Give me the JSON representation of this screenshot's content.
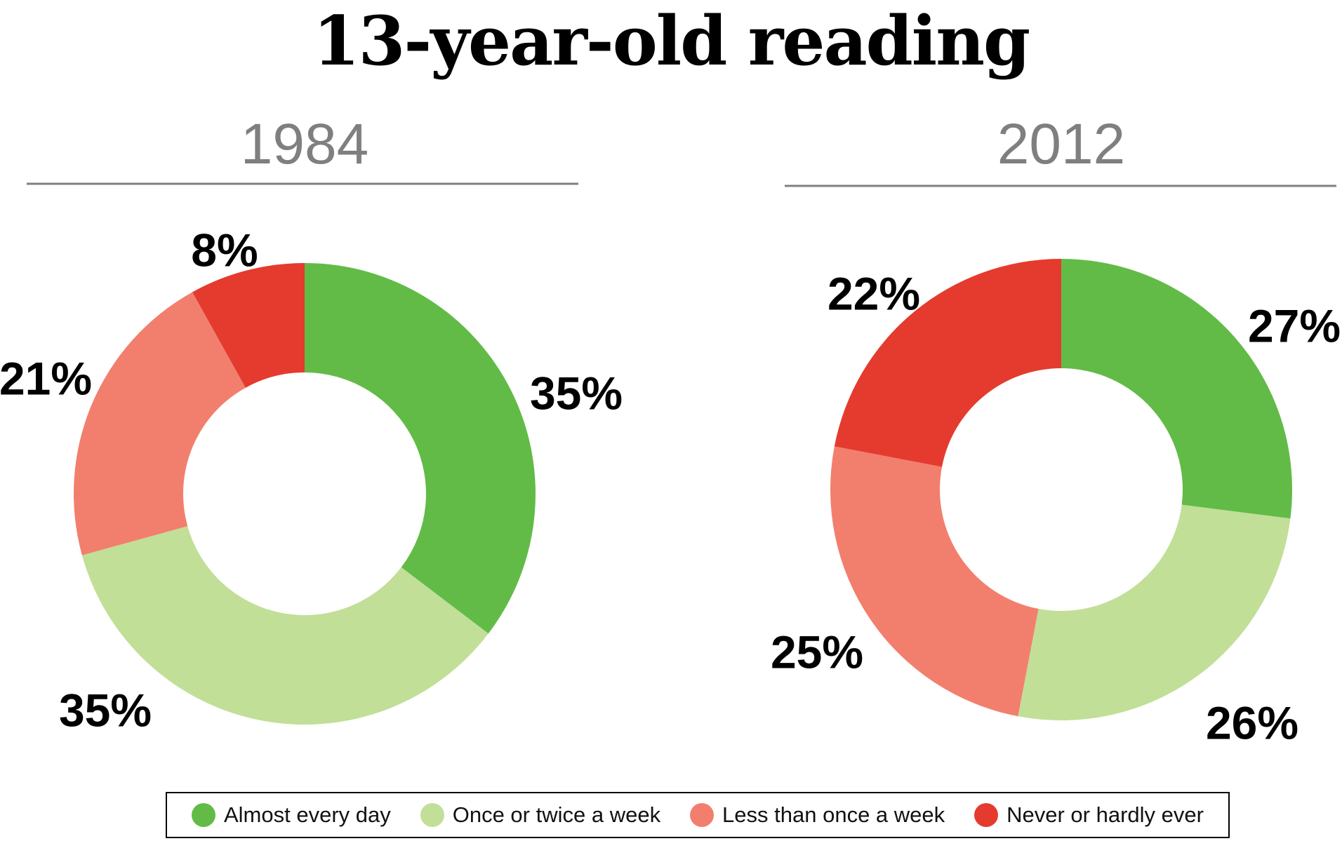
{
  "chart_data": {
    "type": "pie",
    "variant": "donut",
    "title": "13-year-old reading",
    "categories": [
      "Almost every day",
      "Once or twice a week",
      "Less than once a week",
      "Never or hardly ever"
    ],
    "colors": [
      "#62bb47",
      "#c1df97",
      "#f27f6d",
      "#e43b2e"
    ],
    "legend_position": "bottom",
    "charts": [
      {
        "subtitle": "1984",
        "values": [
          35,
          35,
          21,
          8
        ],
        "labels": [
          "35%",
          "35%",
          "21%",
          "8%"
        ]
      },
      {
        "subtitle": "2012",
        "values": [
          27,
          26,
          25,
          22
        ],
        "labels": [
          "27%",
          "26%",
          "25%",
          "22%"
        ]
      }
    ]
  }
}
